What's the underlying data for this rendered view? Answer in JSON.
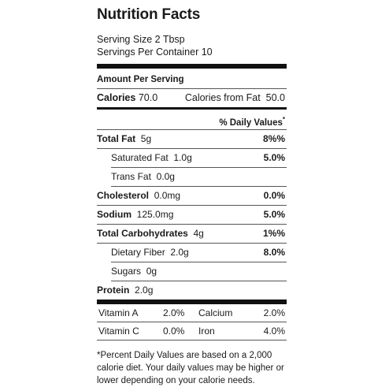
{
  "title": "Nutrition Facts",
  "serving_size": "Serving Size 2 Tbsp",
  "servings_per_container": "Servings Per Container 10",
  "amount_per_serving": "Amount Per Serving",
  "calories": {
    "label": "Calories",
    "value": "70.0"
  },
  "calories_from_fat": {
    "label": "Calories from Fat",
    "value": "50.0"
  },
  "daily_value_header": "% Daily Values",
  "daily_value_mark": "*",
  "nutrients": {
    "total_fat": {
      "label": "Total Fat",
      "amount": "5g",
      "dv": "8%%"
    },
    "saturated_fat": {
      "label": "Saturated Fat",
      "amount": "1.0g",
      "dv": "5.0%"
    },
    "trans_fat": {
      "label": "Trans Fat",
      "amount": "0.0g",
      "dv": ""
    },
    "cholesterol": {
      "label": "Cholesterol",
      "amount": "0.0mg",
      "dv": "0.0%"
    },
    "sodium": {
      "label": "Sodium",
      "amount": "125.0mg",
      "dv": "5.0%"
    },
    "total_carbohydrates": {
      "label": "Total Carbohydrates",
      "amount": "4g",
      "dv": "1%%"
    },
    "dietary_fiber": {
      "label": "Dietary Fiber",
      "amount": "2.0g",
      "dv": "8.0%"
    },
    "sugars": {
      "label": "Sugars",
      "amount": "0g",
      "dv": ""
    },
    "protein": {
      "label": "Protein",
      "amount": "2.0g",
      "dv": ""
    }
  },
  "vitamins": [
    {
      "name1": "Vitamin A",
      "pct1": "2.0%",
      "name2": "Calcium",
      "pct2": "2.0%"
    },
    {
      "name1": "Vitamin C",
      "pct1": "0.0%",
      "name2": "Iron",
      "pct2": "4.0%"
    }
  ],
  "footnote": "*Percent Daily Values are based on a 2,000 calorie diet. Your daily values may be higher or lower depending on your calorie needs."
}
